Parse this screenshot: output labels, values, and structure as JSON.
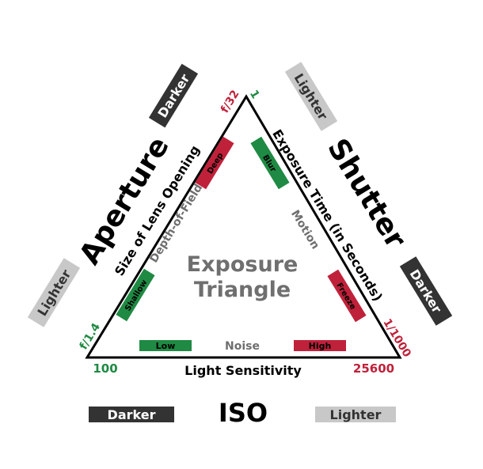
{
  "center_title": {
    "line1": "Exposure",
    "line2": "Triangle"
  },
  "aperture": {
    "title": "Aperture",
    "subtitle": "Size of Lens Opening",
    "effect": "Depth-of-Field",
    "darker": "Darker",
    "lighter": "Lighter",
    "effect_deep": "Deep",
    "effect_shallow": "Shallow",
    "top_value": "f/32",
    "bottom_value": "f/1.4"
  },
  "shutter": {
    "title": "Shutter",
    "subtitle": "Exposure Time (in Seconds)",
    "effect": "Motion",
    "lighter": "Lighter",
    "darker": "Darker",
    "effect_blur": "Blur",
    "effect_freeze": "Freeze",
    "top_value": "1",
    "bottom_value": "1/1000"
  },
  "iso": {
    "title": "ISO",
    "subtitle": "Light Sensitivity",
    "effect": "Noise",
    "darker": "Darker",
    "lighter": "Lighter",
    "effect_low": "Low",
    "effect_high": "High",
    "left_value": "100",
    "right_value": "25600"
  },
  "colors": {
    "green": "#1f8a43",
    "red": "#c0213a",
    "dark": "#333333",
    "light": "#c8c8c8",
    "text_gray": "#6f6f6f"
  }
}
